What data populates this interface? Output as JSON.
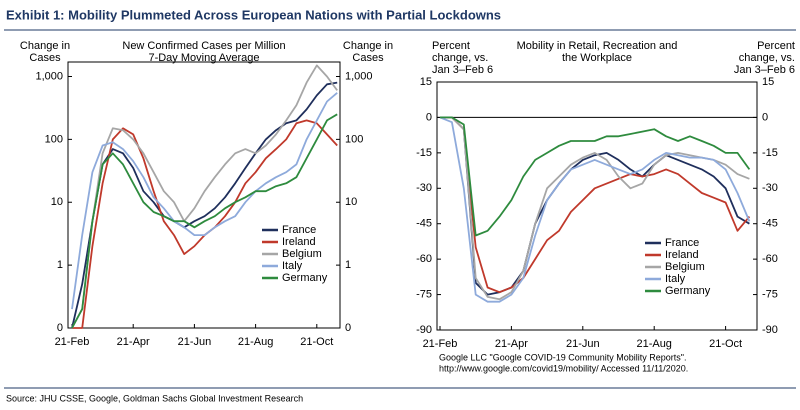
{
  "title": "Exhibit 1: Mobility Plummeted Across European Nations with Partial Lockdowns",
  "source": "Source: JHU CSSE, Google, Goldman Sachs Global Investment Research",
  "chart_data": [
    {
      "type": "line",
      "title": [
        "New Confirmed Cases per Million",
        "7-Day Moving Average"
      ],
      "y_label": [
        "Change in",
        "Cases"
      ],
      "y2_label": [
        "Change in",
        "Cases"
      ],
      "log_scale": true,
      "legend": "lower right",
      "categories": [
        "21-Feb",
        null,
        null,
        null,
        null,
        null,
        "21-Apr",
        null,
        null,
        null,
        null,
        null,
        "21-Jun",
        null,
        null,
        null,
        null,
        null,
        "21-Aug",
        null,
        null,
        null,
        null,
        null,
        "21-Oct",
        null,
        null
      ],
      "ylim": [
        0.1,
        1700
      ],
      "yticks": [
        {
          "value": 0.1,
          "label": "0"
        },
        1,
        10,
        100,
        {
          "value": 1000,
          "label": "1,000"
        }
      ],
      "y2lim": [
        0.1,
        1700
      ],
      "y2ticks": [
        {
          "value": 0.1,
          "label": "0"
        },
        1,
        10,
        100,
        {
          "value": 1000,
          "label": "1,000"
        }
      ],
      "series": [
        {
          "name": "France",
          "color": "#1f2f5c",
          "values": [
            0.1,
            0.5,
            5,
            40,
            70,
            60,
            35,
            15,
            10,
            6,
            5,
            4,
            5,
            6,
            8,
            12,
            20,
            35,
            60,
            100,
            140,
            180,
            200,
            300,
            500,
            750,
            800
          ]
        },
        {
          "name": "Ireland",
          "color": "#c0392b",
          "values": [
            0.1,
            0.1,
            2,
            20,
            100,
            150,
            120,
            50,
            15,
            5,
            3,
            1.5,
            2,
            3,
            4,
            6,
            10,
            20,
            30,
            50,
            70,
            100,
            180,
            200,
            180,
            120,
            80
          ]
        },
        {
          "name": "Belgium",
          "color": "#a6a6a6",
          "values": [
            0.1,
            0.2,
            5,
            60,
            150,
            140,
            100,
            60,
            30,
            15,
            10,
            5,
            8,
            15,
            25,
            40,
            60,
            70,
            60,
            80,
            120,
            200,
            350,
            800,
            1500,
            1000,
            600
          ]
        },
        {
          "name": "Italy",
          "color": "#8eaadb",
          "values": [
            0.2,
            3,
            30,
            80,
            90,
            70,
            45,
            25,
            12,
            8,
            5,
            4,
            3,
            3,
            4,
            5,
            6,
            10,
            15,
            20,
            25,
            30,
            40,
            100,
            200,
            400,
            550
          ]
        },
        {
          "name": "Germany",
          "color": "#2e8b3e",
          "values": [
            0.1,
            0.2,
            5,
            40,
            60,
            40,
            20,
            10,
            7,
            6,
            5,
            5,
            4,
            5,
            6,
            8,
            10,
            12,
            15,
            15,
            18,
            20,
            25,
            50,
            100,
            200,
            250
          ]
        }
      ]
    },
    {
      "type": "line",
      "title": [
        "Mobility in Retail, Recreation and",
        "the Workplace"
      ],
      "y_label": [
        "Percent",
        "change, vs.",
        "Jan 3–Feb 6"
      ],
      "y2_label": [
        "Percent",
        "change, vs.",
        "Jan 3–Feb 6"
      ],
      "log_scale": false,
      "legend": "lower right",
      "note": [
        "Google LLC \"Google COVID-19 Community Mobility Reports\".",
        "http://www.google.com/covid19/mobility/ Accessed 11/11/2020."
      ],
      "categories": [
        "21-Feb",
        null,
        null,
        null,
        null,
        null,
        "21-Apr",
        null,
        null,
        null,
        null,
        null,
        "21-Jun",
        null,
        null,
        null,
        null,
        null,
        "21-Aug",
        null,
        null,
        null,
        null,
        null,
        "21-Oct",
        null,
        null
      ],
      "ylim": [
        -90,
        15
      ],
      "yticks": [
        15,
        0,
        -15,
        -30,
        -45,
        -60,
        -75,
        -90
      ],
      "y2lim": [
        -90,
        15
      ],
      "y2ticks": [
        15,
        0,
        -15,
        -30,
        -45,
        -60,
        -75,
        -90
      ],
      "zero_line": true,
      "series": [
        {
          "name": "France",
          "color": "#1f2f5c",
          "values": [
            0,
            0,
            -5,
            -70,
            -75,
            -74,
            -72,
            -65,
            -45,
            -35,
            -28,
            -22,
            -18,
            -16,
            -15,
            -18,
            -22,
            -25,
            -20,
            -16,
            -18,
            -20,
            -22,
            -25,
            -30,
            -42,
            -45
          ]
        },
        {
          "name": "Ireland",
          "color": "#c0392b",
          "values": [
            0,
            0,
            -5,
            -55,
            -72,
            -74,
            -72,
            -68,
            -60,
            -52,
            -48,
            -40,
            -35,
            -30,
            -28,
            -26,
            -24,
            -25,
            -24,
            -22,
            -24,
            -28,
            -32,
            -34,
            -36,
            -48,
            -42
          ]
        },
        {
          "name": "Belgium",
          "color": "#a6a6a6",
          "values": [
            0,
            0,
            -5,
            -68,
            -76,
            -77,
            -74,
            -65,
            -45,
            -30,
            -25,
            -20,
            -17,
            -15,
            -18,
            -25,
            -30,
            -28,
            -20,
            -16,
            -15,
            -16,
            -17,
            -18,
            -20,
            -24,
            -26
          ]
        },
        {
          "name": "Italy",
          "color": "#8eaadb",
          "values": [
            0,
            -2,
            -30,
            -75,
            -78,
            -78,
            -75,
            -68,
            -50,
            -35,
            -28,
            -22,
            -20,
            -18,
            -20,
            -22,
            -24,
            -22,
            -18,
            -15,
            -16,
            -17,
            -17,
            -18,
            -22,
            -32,
            -44
          ]
        },
        {
          "name": "Germany",
          "color": "#2e8b3e",
          "values": [
            0,
            0,
            -3,
            -50,
            -48,
            -42,
            -35,
            -25,
            -18,
            -15,
            -12,
            -10,
            -10,
            -10,
            -8,
            -8,
            -7,
            -6,
            -5,
            -8,
            -10,
            -8,
            -10,
            -12,
            -15,
            -15,
            -22
          ]
        }
      ]
    }
  ]
}
